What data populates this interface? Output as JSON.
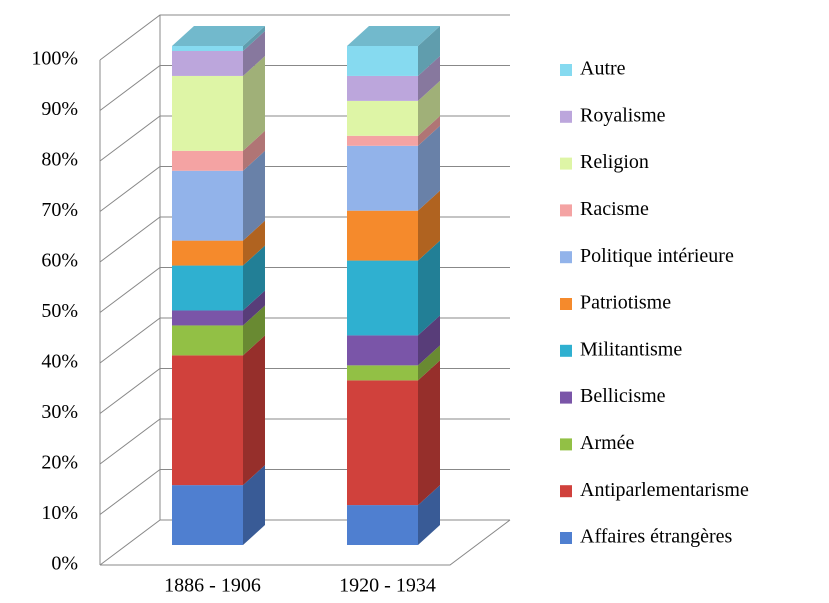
{
  "chart_data": {
    "type": "bar3d_stacked",
    "categories": [
      "1886 - 1906",
      "1920 - 1934"
    ],
    "series": [
      {
        "name": "Affaires étrangères",
        "color": "#4f7fd0",
        "values": [
          12,
          8
        ]
      },
      {
        "name": "Antiparlementarisme",
        "color": "#d0413c",
        "values": [
          26,
          25
        ]
      },
      {
        "name": "Armée",
        "color": "#92c045",
        "values": [
          6,
          3
        ]
      },
      {
        "name": "Bellicisme",
        "color": "#7a55a8",
        "values": [
          3,
          6
        ]
      },
      {
        "name": "Militantisme",
        "color": "#2fb0d0",
        "values": [
          9,
          15
        ]
      },
      {
        "name": "Patriotisme",
        "color": "#f58a2c",
        "values": [
          5,
          10
        ]
      },
      {
        "name": "Politique intérieure",
        "color": "#92b3ea",
        "values": [
          14,
          13
        ]
      },
      {
        "name": "Racisme",
        "color": "#f4a3a3",
        "values": [
          4,
          2
        ]
      },
      {
        "name": "Religion",
        "color": "#def5a6",
        "values": [
          15,
          7
        ]
      },
      {
        "name": "Royalisme",
        "color": "#bca6dc",
        "values": [
          5,
          5
        ]
      },
      {
        "name": "Autre",
        "color": "#86daf0",
        "values": [
          1,
          6
        ]
      }
    ],
    "ylim": [
      0,
      100
    ],
    "yticks": [
      {
        "value": 0,
        "label": "0%"
      },
      {
        "value": 10,
        "label": "10%"
      },
      {
        "value": 20,
        "label": "20%"
      },
      {
        "value": 30,
        "label": "30%"
      },
      {
        "value": 40,
        "label": "40%"
      },
      {
        "value": 50,
        "label": "50%"
      },
      {
        "value": 60,
        "label": "60%"
      },
      {
        "value": 70,
        "label": "70%"
      },
      {
        "value": 80,
        "label": "80%"
      },
      {
        "value": 90,
        "label": "90%"
      },
      {
        "value": 100,
        "label": "100%"
      }
    ],
    "grid": true
  }
}
